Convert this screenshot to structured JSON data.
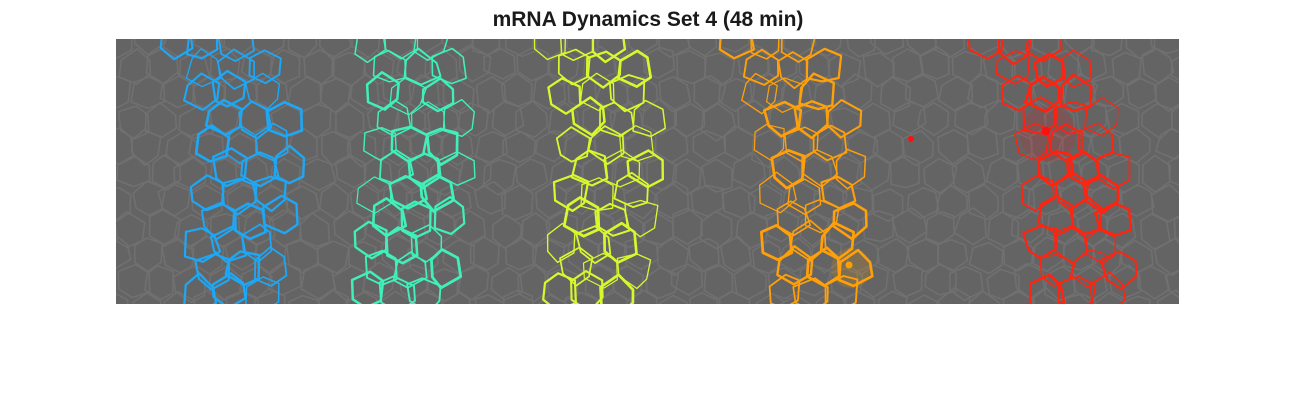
{
  "title": "mRNA Dynamics Set 4 (48 min)",
  "image": {
    "background": "#646464",
    "membrane_grid_color": "#707070",
    "bands": [
      {
        "name": "band-blue",
        "color": "#1ea7f5"
      },
      {
        "name": "band-aqua",
        "color": "#40f0b8"
      },
      {
        "name": "band-yellow",
        "color": "#d8f82e"
      },
      {
        "name": "band-orange",
        "color": "#ffa00a"
      },
      {
        "name": "band-red",
        "color": "#ff2410"
      }
    ],
    "spots": [
      {
        "name": "spot-orange",
        "color": "#ffa000"
      },
      {
        "name": "spot-red-small",
        "color": "#ff1010"
      },
      {
        "name": "spot-red-large",
        "color": "#ff1010"
      }
    ]
  }
}
